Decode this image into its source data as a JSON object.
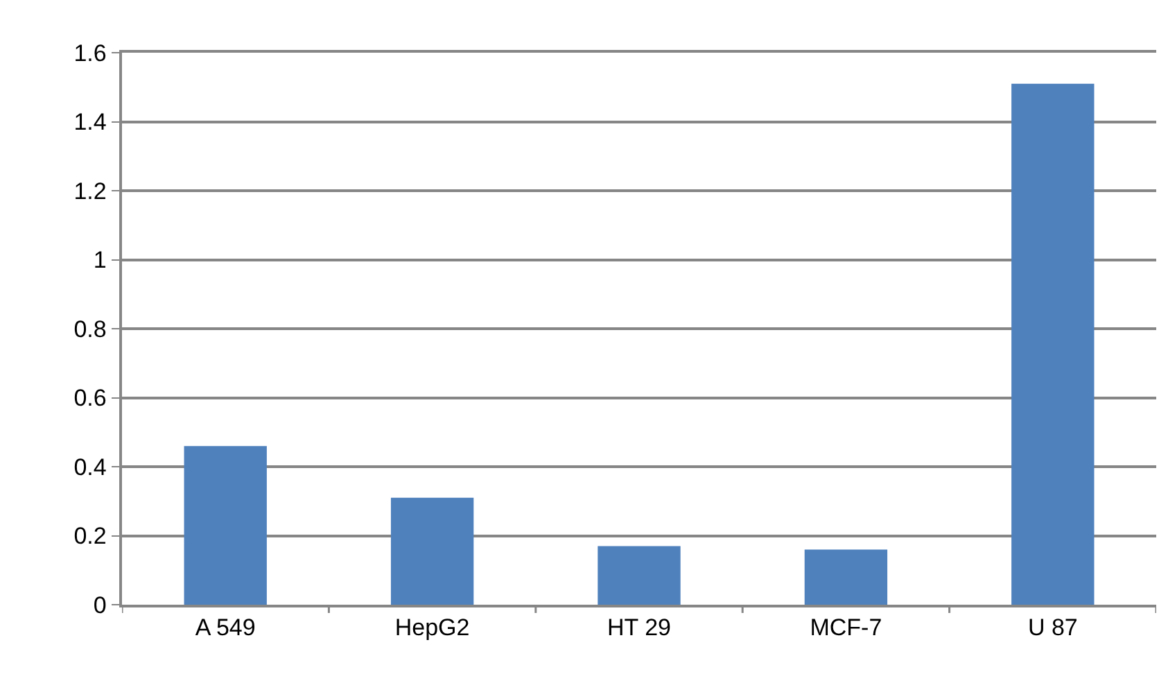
{
  "chart_data": {
    "type": "bar",
    "categories": [
      "A 549",
      "HepG2",
      "HT 29",
      "MCF-7",
      "U 87"
    ],
    "values": [
      0.46,
      0.31,
      0.17,
      0.16,
      1.51
    ],
    "color": "#4f81bd",
    "ylim": [
      0,
      1.6
    ],
    "yticks": [
      0,
      0.2,
      0.4,
      0.6,
      0.8,
      1,
      1.2,
      1.4,
      1.6
    ],
    "grid": "y"
  }
}
